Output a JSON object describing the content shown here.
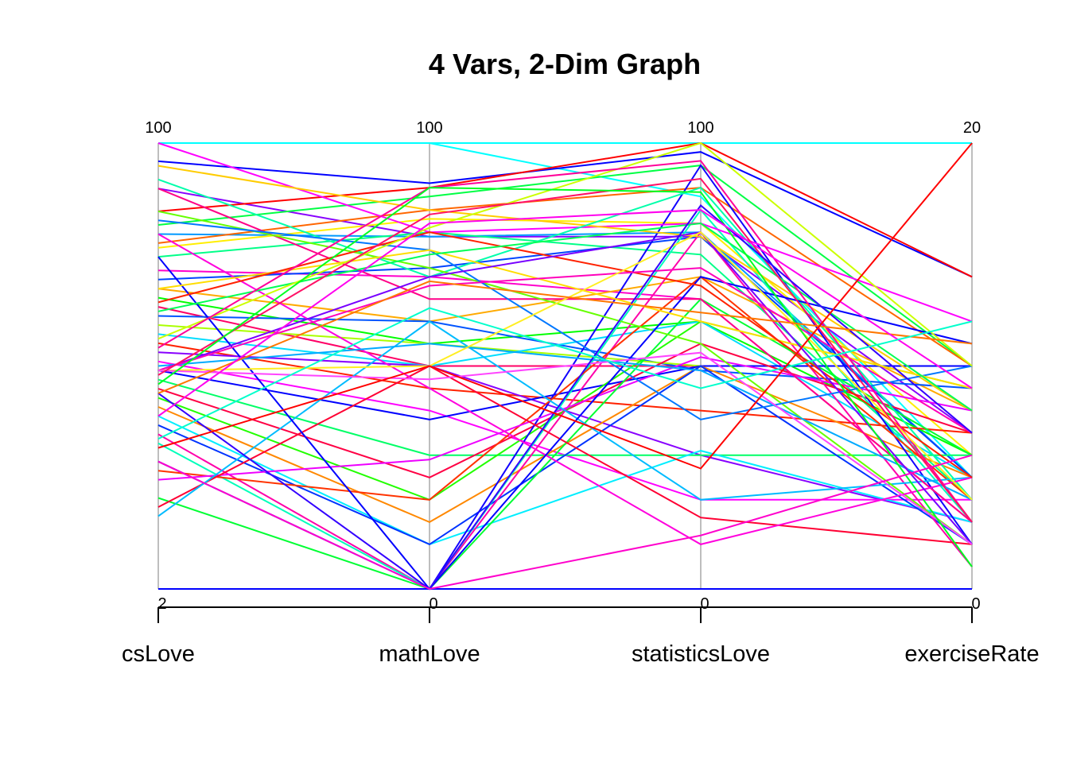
{
  "chart_data": {
    "type": "parallel_coordinates",
    "title": "4 Vars, 2-Dim Graph",
    "axes": [
      {
        "name": "csLove",
        "min": 2,
        "max": 100,
        "min_label": "2",
        "max_label": "100"
      },
      {
        "name": "mathLove",
        "min": 0,
        "max": 100,
        "min_label": "0",
        "max_label": "100"
      },
      {
        "name": "statisticsLove",
        "min": 0,
        "max": 100,
        "min_label": "0",
        "max_label": "100"
      },
      {
        "name": "exerciseRate",
        "min": 0,
        "max": 20,
        "min_label": "0",
        "max_label": "20"
      }
    ],
    "grid": false,
    "legend": "none",
    "series": [
      {
        "values": [
          100,
          100,
          100,
          20
        ],
        "color": "#00ffff"
      },
      {
        "values": [
          100,
          100,
          88,
          5
        ],
        "color": "#00ffff"
      },
      {
        "values": [
          96,
          91,
          98,
          14
        ],
        "color": "#0000ff"
      },
      {
        "values": [
          90,
          79,
          79,
          7
        ],
        "color": "#8800ff"
      },
      {
        "values": [
          80,
          79,
          80,
          5
        ],
        "color": "#0099ff"
      },
      {
        "values": [
          85,
          90,
          100,
          14
        ],
        "color": "#ff0000"
      },
      {
        "values": [
          82,
          88,
          95,
          10
        ],
        "color": "#00ff44"
      },
      {
        "values": [
          78,
          85,
          90,
          10
        ],
        "color": "#ff6600"
      },
      {
        "values": [
          77,
          83,
          82,
          6
        ],
        "color": "#ffee00"
      },
      {
        "values": [
          75,
          80,
          75,
          4
        ],
        "color": "#00ff88"
      },
      {
        "values": [
          72,
          70,
          65,
          3
        ],
        "color": "#ff00cc"
      },
      {
        "values": [
          70,
          72,
          79,
          5
        ],
        "color": "#0044ff"
      },
      {
        "values": [
          68,
          60,
          70,
          8
        ],
        "color": "#ffaa00"
      },
      {
        "values": [
          66,
          55,
          60,
          6
        ],
        "color": "#00ff00"
      },
      {
        "values": [
          64,
          50,
          50,
          10
        ],
        "color": "#ff0066"
      },
      {
        "values": [
          62,
          60,
          49,
          9
        ],
        "color": "#0055ff"
      },
      {
        "values": [
          60,
          55,
          50,
          10
        ],
        "color": "#aaff00"
      },
      {
        "values": [
          58,
          50,
          60,
          5
        ],
        "color": "#00ddff"
      },
      {
        "values": [
          56,
          45,
          40,
          7
        ],
        "color": "#ff2200"
      },
      {
        "values": [
          54,
          50,
          30,
          3
        ],
        "color": "#8800ff"
      },
      {
        "values": [
          52,
          40,
          20,
          4
        ],
        "color": "#ff00ff"
      },
      {
        "values": [
          50,
          38,
          50,
          10
        ],
        "color": "#0000ff"
      },
      {
        "values": [
          48,
          30,
          30,
          6
        ],
        "color": "#00ff66"
      },
      {
        "values": [
          46,
          25,
          55,
          7
        ],
        "color": "#ff0044"
      },
      {
        "values": [
          44,
          20,
          60,
          9
        ],
        "color": "#22ff00"
      },
      {
        "values": [
          42,
          15,
          50,
          5
        ],
        "color": "#ff8800"
      },
      {
        "values": [
          40,
          10,
          31,
          3
        ],
        "color": "#00eeff"
      },
      {
        "values": [
          38,
          10,
          50,
          2
        ],
        "color": "#0033ff"
      },
      {
        "values": [
          36,
          0,
          80,
          1
        ],
        "color": "#ff00aa"
      },
      {
        "values": [
          34,
          0,
          85,
          3
        ],
        "color": "#00ffbb"
      },
      {
        "values": [
          30,
          0,
          95,
          2
        ],
        "color": "#1100ff"
      },
      {
        "values": [
          28,
          20,
          70,
          4
        ],
        "color": "#ff3300"
      },
      {
        "values": [
          26,
          29,
          52,
          8
        ],
        "color": "#ee00ff"
      },
      {
        "values": [
          22,
          0,
          65,
          6
        ],
        "color": "#00ff33"
      },
      {
        "values": [
          20,
          50,
          16,
          2
        ],
        "color": "#ff0033"
      },
      {
        "values": [
          18,
          60,
          20,
          5
        ],
        "color": "#00bbff"
      },
      {
        "values": [
          0,
          0,
          0,
          0
        ],
        "color": "#0000ff"
      },
      {
        "values": [
          100,
          80,
          82,
          12
        ],
        "color": "#ff00ff"
      },
      {
        "values": [
          95,
          85,
          79,
          8
        ],
        "color": "#ffcc00"
      },
      {
        "values": [
          92,
          70,
          90,
          4
        ],
        "color": "#00ffaa"
      },
      {
        "values": [
          90,
          65,
          65,
          3
        ],
        "color": "#ff0088"
      },
      {
        "values": [
          85,
          72,
          55,
          2
        ],
        "color": "#66ff00"
      },
      {
        "values": [
          83,
          76,
          38,
          10
        ],
        "color": "#0077ff"
      },
      {
        "values": [
          80,
          45,
          10,
          5
        ],
        "color": "#ff00dd"
      },
      {
        "values": [
          75,
          0,
          70,
          11
        ],
        "color": "#0000ff"
      },
      {
        "values": [
          68,
          76,
          60,
          9
        ],
        "color": "#ffdd00"
      },
      {
        "values": [
          65,
          80,
          68,
          5
        ],
        "color": "#ff2200"
      },
      {
        "values": [
          63,
          75,
          82,
          8
        ],
        "color": "#00ff55"
      },
      {
        "values": [
          57,
          81,
          100,
          10
        ],
        "color": "#ccff00"
      },
      {
        "values": [
          55,
          90,
          96,
          3
        ],
        "color": "#ff0099"
      },
      {
        "values": [
          51,
          55,
          49,
          4
        ],
        "color": "#00aaff"
      },
      {
        "values": [
          50,
          70,
          80,
          2
        ],
        "color": "#7700ff"
      },
      {
        "values": [
          50,
          68,
          72,
          7
        ],
        "color": "#ff00bb"
      },
      {
        "values": [
          50,
          50,
          80,
          4
        ],
        "color": "#ffee22"
      },
      {
        "values": [
          50,
          47,
          53,
          2
        ],
        "color": "#ff44ff"
      },
      {
        "values": [
          49,
          84,
          92,
          3
        ],
        "color": "#ff1166"
      },
      {
        "values": [
          47,
          90,
          89,
          1
        ],
        "color": "#00ff22"
      },
      {
        "values": [
          45,
          0,
          86,
          7
        ],
        "color": "#3300ff"
      },
      {
        "values": [
          45,
          69,
          62,
          11
        ],
        "color": "#ff7700"
      },
      {
        "values": [
          40,
          82,
          85,
          9
        ],
        "color": "#ff00ee"
      },
      {
        "values": [
          35,
          63,
          45,
          12
        ],
        "color": "#00ffcc"
      },
      {
        "values": [
          33,
          50,
          27,
          20
        ],
        "color": "#ff0000"
      },
      {
        "values": [
          30,
          0,
          12,
          6
        ],
        "color": "#ff00cc"
      }
    ]
  }
}
